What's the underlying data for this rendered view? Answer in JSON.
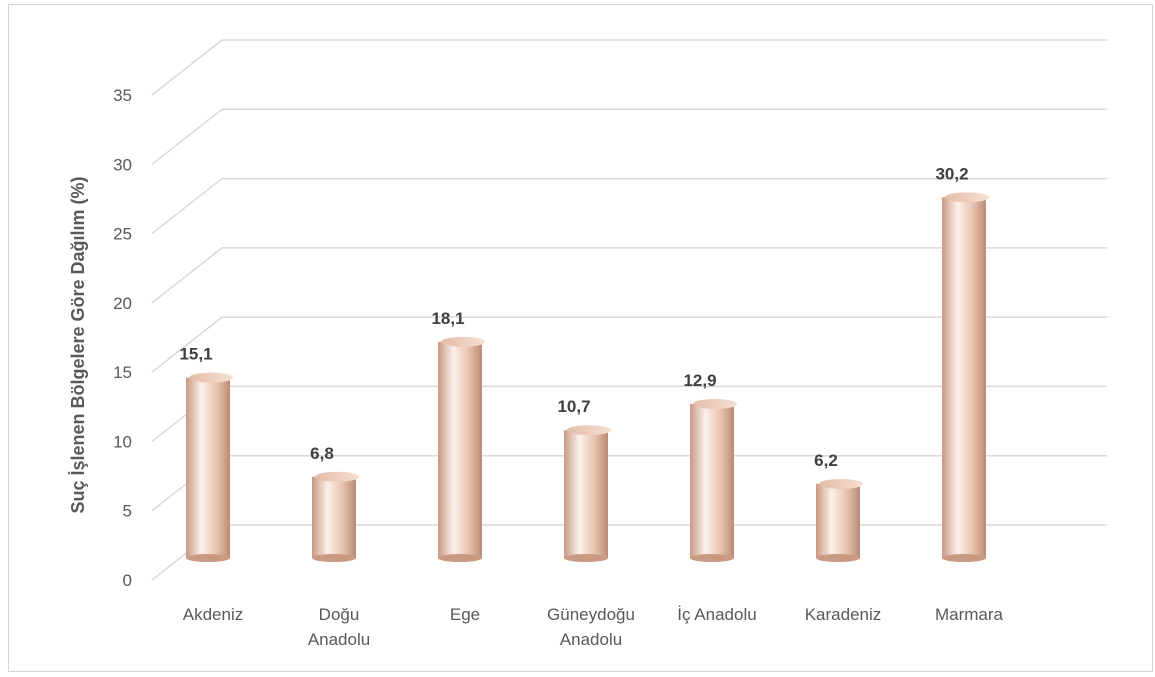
{
  "chart_data": {
    "type": "bar",
    "ylabel": "Suç İşlenen Bölgelere Göre Dağılım (%)",
    "xlabel": "",
    "ylim": [
      0,
      35
    ],
    "yticks": [
      0,
      5,
      10,
      15,
      20,
      25,
      30,
      35
    ],
    "categories": [
      [
        "Akdeniz"
      ],
      [
        "Doğu",
        "Anadolu"
      ],
      [
        "Ege"
      ],
      [
        "Güneydoğu",
        "Anadolu"
      ],
      [
        "İç Anadolu"
      ],
      [
        "Karadeniz"
      ],
      [
        "Marmara"
      ]
    ],
    "values": [
      15.1,
      6.8,
      18.1,
      10.7,
      12.9,
      6.2,
      30.2
    ],
    "value_labels": [
      "15,1",
      "6,8",
      "18,1",
      "10,7",
      "12,9",
      "6,2",
      "30,2"
    ],
    "grid": true,
    "style": "3d-cylinder",
    "colors": {
      "bar_light": "#fbf1ea",
      "bar_mid": "#e8c3ae",
      "bar_dark": "#c99982",
      "grid": "#d9d9d9"
    }
  }
}
